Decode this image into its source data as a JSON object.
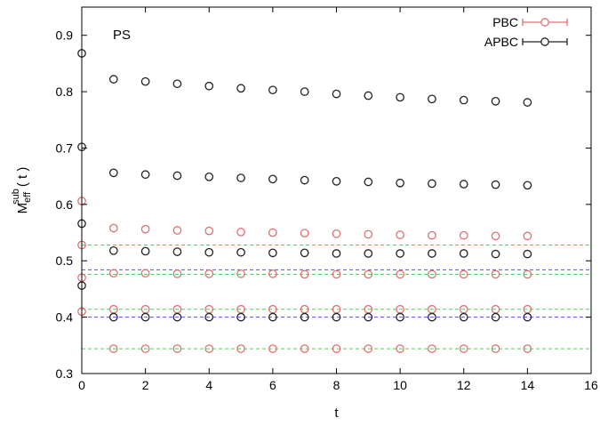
{
  "chart_data": {
    "type": "scatter",
    "title": "",
    "annotation": "PS",
    "xlabel": "t",
    "ylabel_main": "M",
    "ylabel_sub": "eff",
    "ylabel_sup": "sub",
    "ylabel_tail": "( t )",
    "xlim": [
      0,
      16
    ],
    "ylim": [
      0.3,
      0.95
    ],
    "xticks": [
      0,
      2,
      4,
      6,
      8,
      10,
      12,
      14,
      16
    ],
    "yticks": [
      0.3,
      0.4,
      0.5,
      0.6,
      0.7,
      0.8,
      0.9
    ],
    "ytick_labels": [
      "0.3",
      "0.4",
      "0.5",
      "0.6",
      "0.7",
      "0.8",
      "0.9"
    ],
    "legend_position": "top-right",
    "series": [
      {
        "name": "PBC",
        "color": "#e07070",
        "marker": "circle",
        "points": [
          [
            0,
            0.606
          ],
          [
            0,
            0.528
          ],
          [
            0,
            0.47
          ],
          [
            0,
            0.41
          ],
          [
            1,
            0.558
          ],
          [
            2,
            0.556
          ],
          [
            3,
            0.554
          ],
          [
            4,
            0.553
          ],
          [
            5,
            0.551
          ],
          [
            6,
            0.55
          ],
          [
            7,
            0.549
          ],
          [
            8,
            0.548
          ],
          [
            9,
            0.547
          ],
          [
            10,
            0.546
          ],
          [
            11,
            0.545
          ],
          [
            12,
            0.545
          ],
          [
            13,
            0.544
          ],
          [
            14,
            0.544
          ],
          [
            1,
            0.478
          ],
          [
            2,
            0.478
          ],
          [
            3,
            0.477
          ],
          [
            4,
            0.477
          ],
          [
            5,
            0.477
          ],
          [
            6,
            0.477
          ],
          [
            7,
            0.476
          ],
          [
            8,
            0.476
          ],
          [
            9,
            0.476
          ],
          [
            10,
            0.476
          ],
          [
            11,
            0.476
          ],
          [
            12,
            0.476
          ],
          [
            13,
            0.476
          ],
          [
            14,
            0.476
          ],
          [
            1,
            0.414
          ],
          [
            2,
            0.414
          ],
          [
            3,
            0.414
          ],
          [
            4,
            0.414
          ],
          [
            5,
            0.414
          ],
          [
            6,
            0.414
          ],
          [
            7,
            0.414
          ],
          [
            8,
            0.414
          ],
          [
            9,
            0.414
          ],
          [
            10,
            0.414
          ],
          [
            11,
            0.414
          ],
          [
            12,
            0.414
          ],
          [
            13,
            0.414
          ],
          [
            14,
            0.414
          ],
          [
            1,
            0.344
          ],
          [
            2,
            0.344
          ],
          [
            3,
            0.344
          ],
          [
            4,
            0.344
          ],
          [
            5,
            0.344
          ],
          [
            6,
            0.344
          ],
          [
            7,
            0.344
          ],
          [
            8,
            0.344
          ],
          [
            9,
            0.344
          ],
          [
            10,
            0.344
          ],
          [
            11,
            0.344
          ],
          [
            12,
            0.344
          ],
          [
            13,
            0.344
          ],
          [
            14,
            0.344
          ]
        ]
      },
      {
        "name": "APBC",
        "color": "#222222",
        "marker": "circle",
        "points": [
          [
            0,
            0.868
          ],
          [
            0,
            0.702
          ],
          [
            0,
            0.566
          ],
          [
            0,
            0.456
          ],
          [
            1,
            0.822
          ],
          [
            2,
            0.818
          ],
          [
            3,
            0.814
          ],
          [
            4,
            0.81
          ],
          [
            5,
            0.806
          ],
          [
            6,
            0.803
          ],
          [
            7,
            0.8
          ],
          [
            8,
            0.796
          ],
          [
            9,
            0.793
          ],
          [
            10,
            0.79
          ],
          [
            11,
            0.787
          ],
          [
            12,
            0.785
          ],
          [
            13,
            0.783
          ],
          [
            14,
            0.781
          ],
          [
            1,
            0.656
          ],
          [
            2,
            0.653
          ],
          [
            3,
            0.651
          ],
          [
            4,
            0.649
          ],
          [
            5,
            0.647
          ],
          [
            6,
            0.645
          ],
          [
            7,
            0.643
          ],
          [
            8,
            0.641
          ],
          [
            9,
            0.64
          ],
          [
            10,
            0.638
          ],
          [
            11,
            0.637
          ],
          [
            12,
            0.636
          ],
          [
            13,
            0.635
          ],
          [
            14,
            0.634
          ],
          [
            1,
            0.518
          ],
          [
            2,
            0.517
          ],
          [
            3,
            0.516
          ],
          [
            4,
            0.515
          ],
          [
            5,
            0.515
          ],
          [
            6,
            0.514
          ],
          [
            7,
            0.514
          ],
          [
            8,
            0.513
          ],
          [
            9,
            0.513
          ],
          [
            10,
            0.513
          ],
          [
            11,
            0.513
          ],
          [
            12,
            0.513
          ],
          [
            13,
            0.512
          ],
          [
            14,
            0.512
          ],
          [
            1,
            0.4
          ],
          [
            2,
            0.4
          ],
          [
            3,
            0.4
          ],
          [
            4,
            0.4
          ],
          [
            5,
            0.4
          ],
          [
            6,
            0.4
          ],
          [
            7,
            0.4
          ],
          [
            8,
            0.4
          ],
          [
            9,
            0.4
          ],
          [
            10,
            0.4
          ],
          [
            11,
            0.4
          ],
          [
            12,
            0.4
          ],
          [
            13,
            0.4
          ],
          [
            14,
            0.4
          ]
        ]
      }
    ],
    "reference_lines": [
      {
        "y": 0.528,
        "color": "#55cc55",
        "style": "dashed"
      },
      {
        "y": 0.476,
        "color": "#55cc55",
        "style": "dashed"
      },
      {
        "y": 0.414,
        "color": "#55cc55",
        "style": "dashed"
      },
      {
        "y": 0.344,
        "color": "#55cc55",
        "style": "dashed"
      },
      {
        "y": 0.484,
        "color": "#5555dd",
        "style": "dashed"
      },
      {
        "y": 0.4,
        "color": "#5555dd",
        "style": "dashed"
      }
    ]
  }
}
